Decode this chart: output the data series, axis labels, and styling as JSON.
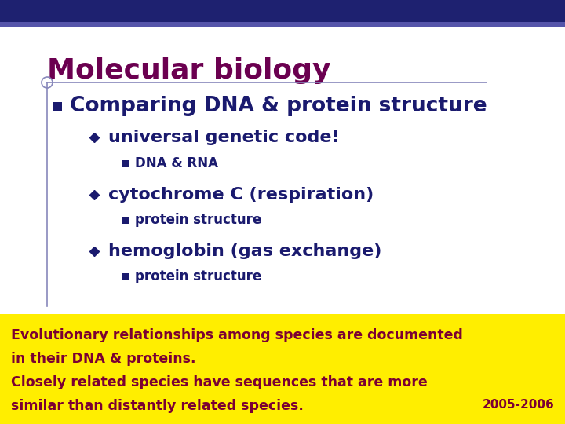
{
  "bg_color": "#ffffff",
  "top_bar_color": "#1e2170",
  "top_bar_color2": "#5555aa",
  "title": "Molecular biology",
  "title_color": "#6b0050",
  "title_fontsize": 26,
  "line_color": "#8888bb",
  "bullet1_text": "Comparing DNA & protein structure",
  "bullet1_color": "#1a1a6e",
  "bullet1_fontsize": 19,
  "sub1_text": "universal genetic code!",
  "sub1_color": "#1a1a6e",
  "sub1_fontsize": 16,
  "sub1a_text": "DNA & RNA",
  "sub1a_color": "#1a1a6e",
  "sub1a_fontsize": 12,
  "sub2_text": "cytochrome C (respiration)",
  "sub2_color": "#1a1a6e",
  "sub2_fontsize": 16,
  "sub2a_text": "protein structure",
  "sub2a_color": "#1a1a6e",
  "sub2a_fontsize": 12,
  "sub3_text": "hemoglobin (gas exchange)",
  "sub3_color": "#1a1a6e",
  "sub3_fontsize": 16,
  "sub3a_text": "protein structure",
  "sub3a_color": "#1a1a6e",
  "sub3a_fontsize": 12,
  "yellow_bg_color": "#ffee00",
  "yellow_text_color": "#7b0033",
  "yellow_text_fontsize": 12.5,
  "yellow_line1": "Evolutionary relationships among species are documented",
  "yellow_line2": "in their DNA & proteins.",
  "yellow_line3": "Closely related species have sequences that are more",
  "yellow_line4": "similar than distantly related species.",
  "year_text": "2005-2006",
  "year_color": "#7b0033",
  "year_fontsize": 11,
  "diamond_color": "#1a1a6e",
  "sq_bullet_color": "#1a1a6e"
}
